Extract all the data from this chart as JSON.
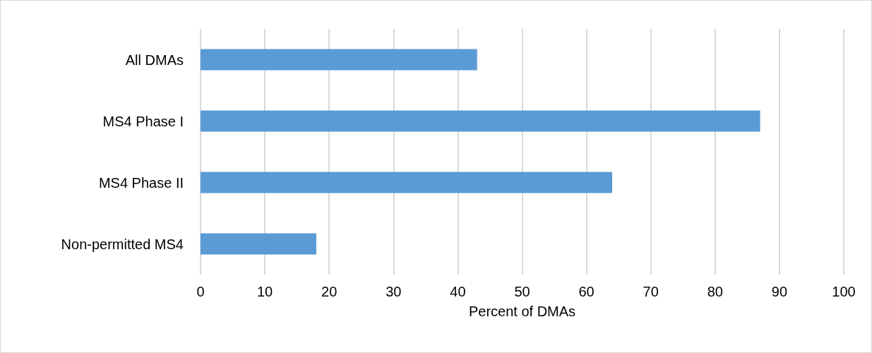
{
  "chart_data": {
    "type": "bar",
    "orientation": "horizontal",
    "xlabel": "Percent of DMAs",
    "categories": [
      "All DMAs",
      "MS4 Phase I",
      "MS4 Phase II",
      "Non-permitted MS4"
    ],
    "values": [
      43,
      87,
      64,
      18
    ],
    "color": "#5b9bd5",
    "xlim": [
      0,
      100
    ],
    "xticks": [
      0,
      10,
      20,
      30,
      40,
      50,
      60,
      70,
      80,
      90,
      100
    ],
    "grid": "x"
  }
}
